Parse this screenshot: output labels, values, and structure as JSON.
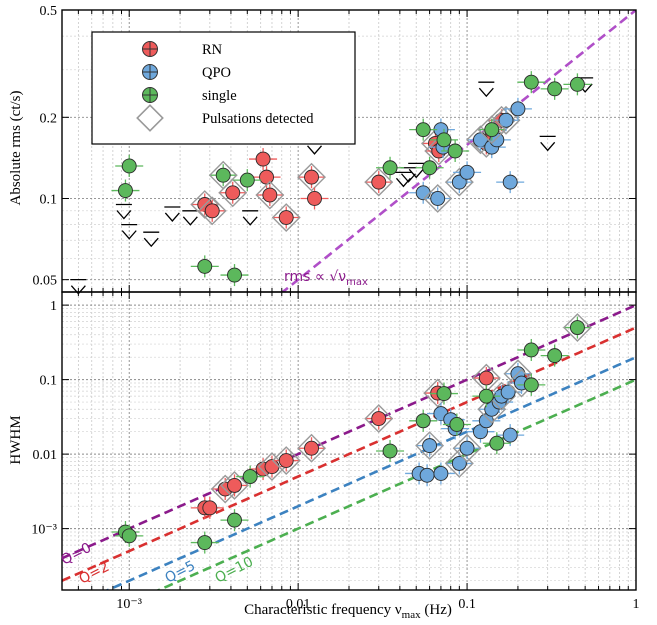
{
  "figure": {
    "xlabel_main": "Characteristic frequency ν",
    "xlabel_sub": "max",
    "xlabel_unit": " (Hz)"
  },
  "colors": {
    "RN": "#ee5b5b",
    "QPO": "#6fa8dc",
    "single": "#5cb85c",
    "Q0": "#8b1a8b",
    "Q2": "#d93030",
    "Q5": "#3c82c0",
    "Q10": "#4caf50",
    "rms_line": "#b04fc8"
  },
  "legend": [
    {
      "key": "RN",
      "label": "RN"
    },
    {
      "key": "QPO",
      "label": "QPO"
    },
    {
      "key": "single",
      "label": "single"
    },
    {
      "key": "puls",
      "label": "Pulsations detected"
    }
  ],
  "annotations": {
    "rms_rel_main": "rms ∝ √ν",
    "rms_rel_sub": "max",
    "q0": "Q=0",
    "q2": "Q=2",
    "q5": "Q=5",
    "q10": "Q=10"
  },
  "chart_data": [
    {
      "type": "scatter",
      "ylabel": "Absolute rms (ct/s)",
      "xscale": "log",
      "yscale": "log",
      "xlim": [
        0.0004,
        1
      ],
      "ylim": [
        0.045,
        0.5
      ],
      "xticks": [
        {
          "v": 0.001,
          "label": "10⁻³"
        },
        {
          "v": 0.01,
          "label": "0.01"
        },
        {
          "v": 0.1,
          "label": "0.1"
        },
        {
          "v": 1,
          "label": "1"
        }
      ],
      "yticks": [
        {
          "v": 0.05,
          "label": "0.05"
        },
        {
          "v": 0.1,
          "label": "0.1"
        },
        {
          "v": 0.2,
          "label": "0.2"
        },
        {
          "v": 0.5,
          "label": "0.5"
        }
      ],
      "grid": true,
      "legend_position": "top-left",
      "series": [
        {
          "name": "RN",
          "points": [
            {
              "x": 0.0028,
              "y": 0.095,
              "p": 1
            },
            {
              "x": 0.0031,
              "y": 0.09,
              "p": 1
            },
            {
              "x": 0.0041,
              "y": 0.105,
              "p": 1
            },
            {
              "x": 0.0062,
              "y": 0.14
            },
            {
              "x": 0.0065,
              "y": 0.12
            },
            {
              "x": 0.0068,
              "y": 0.103,
              "p": 1
            },
            {
              "x": 0.0085,
              "y": 0.085,
              "p": 1
            },
            {
              "x": 0.012,
              "y": 0.12,
              "p": 1
            },
            {
              "x": 0.0125,
              "y": 0.1
            },
            {
              "x": 0.03,
              "y": 0.115,
              "p": 1
            },
            {
              "x": 0.065,
              "y": 0.16,
              "p": 1
            },
            {
              "x": 0.068,
              "y": 0.15,
              "p": 1
            },
            {
              "x": 0.13,
              "y": 0.16,
              "p": 1
            },
            {
              "x": 0.135,
              "y": 0.165,
              "p": 1
            },
            {
              "x": 0.16,
              "y": 0.195,
              "p": 1
            }
          ]
        },
        {
          "name": "QPO",
          "points": [
            {
              "x": 0.055,
              "y": 0.105
            },
            {
              "x": 0.067,
              "y": 0.1,
              "p": 1
            },
            {
              "x": 0.07,
              "y": 0.18
            },
            {
              "x": 0.072,
              "y": 0.155
            },
            {
              "x": 0.09,
              "y": 0.115,
              "p": 1
            },
            {
              "x": 0.1,
              "y": 0.125
            },
            {
              "x": 0.12,
              "y": 0.165,
              "p": 1
            },
            {
              "x": 0.14,
              "y": 0.155
            },
            {
              "x": 0.15,
              "y": 0.165
            },
            {
              "x": 0.17,
              "y": 0.195,
              "p": 1
            },
            {
              "x": 0.18,
              "y": 0.115
            },
            {
              "x": 0.2,
              "y": 0.215
            }
          ]
        },
        {
          "name": "single",
          "points": [
            {
              "x": 0.001,
              "y": 0.132
            },
            {
              "x": 0.00095,
              "y": 0.107
            },
            {
              "x": 0.0028,
              "y": 0.056
            },
            {
              "x": 0.0042,
              "y": 0.052
            },
            {
              "x": 0.0036,
              "y": 0.122,
              "p": 1
            },
            {
              "x": 0.005,
              "y": 0.117
            },
            {
              "x": 0.035,
              "y": 0.13
            },
            {
              "x": 0.055,
              "y": 0.18
            },
            {
              "x": 0.06,
              "y": 0.13
            },
            {
              "x": 0.073,
              "y": 0.165
            },
            {
              "x": 0.085,
              "y": 0.15
            },
            {
              "x": 0.14,
              "y": 0.18,
              "p": 1
            },
            {
              "x": 0.24,
              "y": 0.27
            },
            {
              "x": 0.33,
              "y": 0.255
            },
            {
              "x": 0.45,
              "y": 0.265
            }
          ]
        }
      ],
      "upper_limits": [
        {
          "x": 0.0005,
          "y": 0.05
        },
        {
          "x": 0.00093,
          "y": 0.095
        },
        {
          "x": 0.001,
          "y": 0.08
        },
        {
          "x": 0.00135,
          "y": 0.075
        },
        {
          "x": 0.0018,
          "y": 0.093
        },
        {
          "x": 0.0023,
          "y": 0.09
        },
        {
          "x": 0.0052,
          "y": 0.09
        },
        {
          "x": 0.0125,
          "y": 0.165
        },
        {
          "x": 0.042,
          "y": 0.125
        },
        {
          "x": 0.045,
          "y": 0.13
        },
        {
          "x": 0.05,
          "y": 0.135
        },
        {
          "x": 0.13,
          "y": 0.27
        },
        {
          "x": 0.3,
          "y": 0.17
        },
        {
          "x": 0.5,
          "y": 0.28
        }
      ],
      "lines": [
        {
          "name": "rms ∝ √νmax",
          "k": 0.5,
          "exp": 0.5
        }
      ]
    },
    {
      "type": "scatter",
      "ylabel": "HWHM",
      "xlabel": "Characteristic frequency νmax (Hz)",
      "xscale": "log",
      "yscale": "log",
      "xlim": [
        0.0004,
        1
      ],
      "ylim": [
        0.00015,
        1.5
      ],
      "xticks": [
        {
          "v": 0.001,
          "label": "10⁻³"
        },
        {
          "v": 0.01,
          "label": "0.01"
        },
        {
          "v": 0.1,
          "label": "0.1"
        },
        {
          "v": 1,
          "label": "1"
        }
      ],
      "yticks": [
        {
          "v": 0.001,
          "label": "10⁻³"
        },
        {
          "v": 0.01,
          "label": "0.01"
        },
        {
          "v": 0.1,
          "label": "0.1"
        },
        {
          "v": 1,
          "label": "1"
        }
      ],
      "grid": true,
      "series": [
        {
          "name": "RN",
          "points": [
            {
              "x": 0.0028,
              "y": 0.0019
            },
            {
              "x": 0.003,
              "y": 0.0019
            },
            {
              "x": 0.0037,
              "y": 0.0034,
              "p": 1
            },
            {
              "x": 0.0042,
              "y": 0.0038,
              "p": 1
            },
            {
              "x": 0.0062,
              "y": 0.0063
            },
            {
              "x": 0.007,
              "y": 0.0068,
              "p": 1
            },
            {
              "x": 0.0085,
              "y": 0.0082,
              "p": 1
            },
            {
              "x": 0.012,
              "y": 0.012,
              "p": 1
            },
            {
              "x": 0.03,
              "y": 0.03,
              "p": 1
            },
            {
              "x": 0.067,
              "y": 0.066,
              "p": 1
            },
            {
              "x": 0.13,
              "y": 0.105,
              "p": 1
            }
          ]
        },
        {
          "name": "QPO",
          "points": [
            {
              "x": 0.052,
              "y": 0.0055
            },
            {
              "x": 0.058,
              "y": 0.0052
            },
            {
              "x": 0.06,
              "y": 0.013,
              "p": 1
            },
            {
              "x": 0.07,
              "y": 0.0055
            },
            {
              "x": 0.07,
              "y": 0.035
            },
            {
              "x": 0.085,
              "y": 0.022
            },
            {
              "x": 0.08,
              "y": 0.029
            },
            {
              "x": 0.09,
              "y": 0.0075,
              "p": 1
            },
            {
              "x": 0.1,
              "y": 0.012,
              "p": 1
            },
            {
              "x": 0.12,
              "y": 0.02
            },
            {
              "x": 0.13,
              "y": 0.028
            },
            {
              "x": 0.14,
              "y": 0.04,
              "p": 1
            },
            {
              "x": 0.155,
              "y": 0.05
            },
            {
              "x": 0.16,
              "y": 0.06,
              "p": 1
            },
            {
              "x": 0.175,
              "y": 0.068
            },
            {
              "x": 0.18,
              "y": 0.018
            },
            {
              "x": 0.2,
              "y": 0.12,
              "p": 1
            },
            {
              "x": 0.21,
              "y": 0.09,
              "p": 1
            }
          ]
        },
        {
          "name": "single",
          "points": [
            {
              "x": 0.00095,
              "y": 0.0009
            },
            {
              "x": 0.001,
              "y": 0.0008
            },
            {
              "x": 0.0028,
              "y": 0.00065
            },
            {
              "x": 0.0042,
              "y": 0.0013
            },
            {
              "x": 0.0052,
              "y": 0.005
            },
            {
              "x": 0.035,
              "y": 0.011
            },
            {
              "x": 0.055,
              "y": 0.028
            },
            {
              "x": 0.073,
              "y": 0.065
            },
            {
              "x": 0.087,
              "y": 0.025
            },
            {
              "x": 0.13,
              "y": 0.06
            },
            {
              "x": 0.15,
              "y": 0.014
            },
            {
              "x": 0.24,
              "y": 0.085
            },
            {
              "x": 0.24,
              "y": 0.25
            },
            {
              "x": 0.33,
              "y": 0.21
            },
            {
              "x": 0.45,
              "y": 0.5,
              "p": 1
            }
          ]
        }
      ],
      "lines": [
        {
          "name": "Q=0",
          "k": 1,
          "exp": 1
        },
        {
          "name": "Q=2",
          "k": 0.5,
          "exp": 1
        },
        {
          "name": "Q=5",
          "k": 0.2,
          "exp": 1
        },
        {
          "name": "Q=10",
          "k": 0.1,
          "exp": 1
        }
      ]
    }
  ]
}
